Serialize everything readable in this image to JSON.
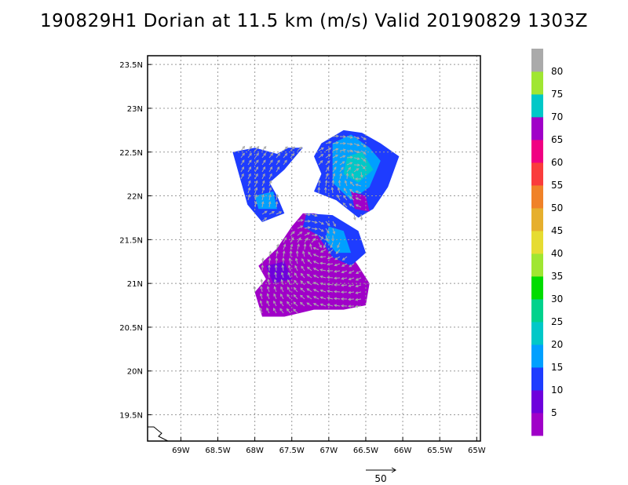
{
  "title": "190829H1 Dorian at 11.5 km (m/s) Valid 20190829 1303Z",
  "map": {
    "lon_range": [
      -69.45,
      -64.95
    ],
    "lat_range": [
      19.2,
      23.6
    ],
    "x_ticks": [
      {
        "value": -69.0,
        "label": "69W"
      },
      {
        "value": -68.5,
        "label": "68.5W"
      },
      {
        "value": -68.0,
        "label": "68W"
      },
      {
        "value": -67.5,
        "label": "67.5W"
      },
      {
        "value": -67.0,
        "label": "67W"
      },
      {
        "value": -66.5,
        "label": "66.5W"
      },
      {
        "value": -66.0,
        "label": "66W"
      },
      {
        "value": -65.5,
        "label": "65.5W"
      },
      {
        "value": -65.0,
        "label": "65W"
      }
    ],
    "y_ticks": [
      {
        "value": 19.5,
        "label": "19.5N"
      },
      {
        "value": 20.0,
        "label": "20N"
      },
      {
        "value": 20.5,
        "label": "20.5N"
      },
      {
        "value": 21.0,
        "label": "21N"
      },
      {
        "value": 21.5,
        "label": "21.5N"
      },
      {
        "value": 22.0,
        "label": "22N"
      },
      {
        "value": 22.5,
        "label": "22.5N"
      },
      {
        "value": 23.0,
        "label": "23N"
      },
      {
        "value": 23.5,
        "label": "23.5N"
      }
    ],
    "grid": true
  },
  "colorbar": {
    "colors": [
      "#a000c8",
      "#6e00dc",
      "#1e3cff",
      "#00a0ff",
      "#00c8c8",
      "#00d28c",
      "#00dc00",
      "#a0e632",
      "#e6dc32",
      "#e6af2d",
      "#f08228",
      "#fa3c3c",
      "#f00082",
      "#a000c8",
      "#00c8c8",
      "#a0e632",
      "#aaaaaa"
    ],
    "labels": [
      "5",
      "10",
      "15",
      "20",
      "25",
      "30",
      "35",
      "40",
      "45",
      "50",
      "55",
      "60",
      "65",
      "70",
      "75",
      "80"
    ]
  },
  "reference_vector": {
    "label": "50"
  },
  "wind_field": {
    "colors": {
      "low": "#6e00dc",
      "low2": "#a000c8",
      "mid": "#1e3cff",
      "high": "#00a0ff",
      "higher": "#00c8c8",
      "peak": "#00d28c"
    },
    "vector_color": "#aaaaaa"
  }
}
